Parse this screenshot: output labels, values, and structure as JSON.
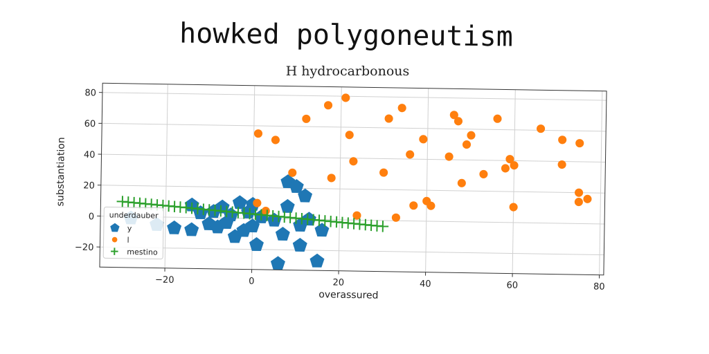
{
  "chart_data": {
    "type": "scatter",
    "title": "howked polygoneutism",
    "subtitle": "H hydrocarbonous",
    "xlabel": "overassured",
    "ylabel": "substantiation",
    "xlim": [
      -35,
      81
    ],
    "ylim": [
      -33,
      86
    ],
    "x_ticks": [
      -20,
      0,
      20,
      40,
      60,
      80
    ],
    "y_ticks": [
      -20,
      0,
      20,
      40,
      60,
      80
    ],
    "x_tick_labels": [
      "−20",
      "0",
      "20",
      "40",
      "60",
      "80"
    ],
    "y_tick_labels": [
      "−20",
      "0",
      "20",
      "40",
      "60",
      "80"
    ],
    "grid": true,
    "legend": {
      "title": "underdauber",
      "position": "lower-left",
      "entries": [
        "y",
        "l",
        "mestino"
      ]
    },
    "series": [
      {
        "name": "y",
        "marker": "pentagon",
        "color": "#1f77b4",
        "points": [
          [
            -28,
            -1
          ],
          [
            -22,
            -5
          ],
          [
            -18,
            -7
          ],
          [
            -14,
            -8
          ],
          [
            -14,
            8
          ],
          [
            -12,
            3
          ],
          [
            -10,
            -4
          ],
          [
            -9,
            4
          ],
          [
            -8,
            -6
          ],
          [
            -7,
            7
          ],
          [
            -6,
            -3
          ],
          [
            -5,
            2
          ],
          [
            -4,
            -12
          ],
          [
            -3,
            10
          ],
          [
            -2,
            -8
          ],
          [
            -1,
            4
          ],
          [
            0,
            9
          ],
          [
            0,
            -5
          ],
          [
            1,
            -17
          ],
          [
            2,
            1
          ],
          [
            5,
            -1
          ],
          [
            6,
            -29
          ],
          [
            7,
            -10
          ],
          [
            8,
            8
          ],
          [
            8,
            24
          ],
          [
            10,
            21
          ],
          [
            11,
            -17
          ],
          [
            11,
            -4
          ],
          [
            12,
            15
          ],
          [
            13,
            0
          ],
          [
            15,
            -27
          ],
          [
            16,
            -7
          ]
        ]
      },
      {
        "name": "l",
        "marker": "circle",
        "color": "#ff7f0e",
        "points": [
          [
            1,
            55
          ],
          [
            1,
            10
          ],
          [
            3,
            5
          ],
          [
            5,
            51
          ],
          [
            9,
            30
          ],
          [
            12,
            65
          ],
          [
            17,
            74
          ],
          [
            18,
            27
          ],
          [
            21,
            79
          ],
          [
            22,
            55
          ],
          [
            23,
            38
          ],
          [
            24,
            3
          ],
          [
            30,
            31
          ],
          [
            31,
            66
          ],
          [
            33,
            2
          ],
          [
            34,
            73
          ],
          [
            36,
            43
          ],
          [
            37,
            10
          ],
          [
            39,
            53
          ],
          [
            40,
            13
          ],
          [
            41,
            10
          ],
          [
            45,
            42
          ],
          [
            46,
            69
          ],
          [
            47,
            65
          ],
          [
            48,
            25
          ],
          [
            49,
            50
          ],
          [
            50,
            56
          ],
          [
            53,
            31
          ],
          [
            56,
            67
          ],
          [
            58,
            35
          ],
          [
            59,
            41
          ],
          [
            60,
            37
          ],
          [
            60,
            10
          ],
          [
            66,
            61
          ],
          [
            71,
            54
          ],
          [
            71,
            38
          ],
          [
            75,
            52
          ],
          [
            75,
            14
          ],
          [
            75,
            20
          ],
          [
            77,
            16
          ]
        ]
      },
      {
        "name": "mestino",
        "marker": "plus",
        "color": "#2ca02c",
        "x_range": [
          -30,
          30
        ],
        "y_at_range": [
          9.6,
          -3.8
        ],
        "count": 46
      }
    ]
  }
}
